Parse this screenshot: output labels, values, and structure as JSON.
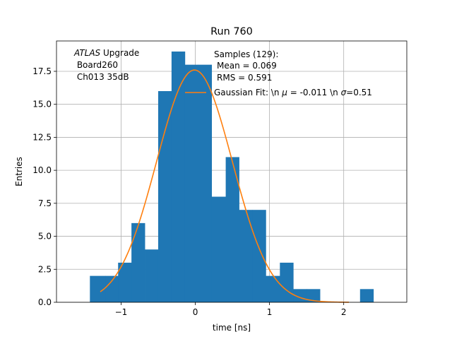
{
  "chart_data": {
    "type": "histogram",
    "title": "Run 760",
    "xlabel": "time [ns]",
    "ylabel": "Entries",
    "xlim": [
      -1.87,
      2.85
    ],
    "ylim": [
      0,
      19.8
    ],
    "xticks": [
      -1,
      0,
      1,
      2
    ],
    "xtick_labels": [
      "−1",
      "0",
      "1",
      "2"
    ],
    "yticks": [
      0.0,
      2.5,
      5.0,
      7.5,
      10.0,
      12.5,
      15.0,
      17.5
    ],
    "ytick_labels": [
      "0.0",
      "2.5",
      "5.0",
      "7.5",
      "10.0",
      "12.5",
      "15.0",
      "17.5"
    ],
    "grid": true,
    "bar_color": "#1f77b4",
    "fit_color": "#ff7f0e",
    "bins": {
      "edges": [
        -1.42,
        -1.21,
        -1.04,
        -0.86,
        -0.68,
        -0.5,
        -0.32,
        -0.14,
        0.04,
        0.22,
        0.41,
        0.59,
        0.77,
        0.95,
        1.14,
        1.32,
        1.5,
        1.68,
        1.86,
        2.04,
        2.22,
        2.4
      ],
      "counts": [
        2,
        2,
        3,
        6,
        4,
        16,
        19,
        18,
        18,
        8,
        11,
        7,
        7,
        2,
        3,
        1,
        1,
        0,
        0,
        0,
        1
      ]
    },
    "fit": {
      "mu": -0.011,
      "sigma": 0.51,
      "amplitude": 17.6,
      "x_range": [
        -1.28,
        2.07
      ]
    },
    "annotation": {
      "italic": "ATLAS",
      "rest": " Upgrade",
      "line2": " Board260",
      "line3": " Ch013 35dB"
    },
    "legend": {
      "position": "top-right",
      "hist_title": "Samples (129):",
      "hist_mean": "Mean = 0.069",
      "hist_rms": "RMS = 0.591",
      "fit_label_start": "Gaussian Fit: \\n ",
      "fit_mu_symbol": "μ",
      "fit_mu_value": " = -0.011 \\n ",
      "fit_sigma_symbol": "σ",
      "fit_sigma_value": "=0.51"
    }
  }
}
